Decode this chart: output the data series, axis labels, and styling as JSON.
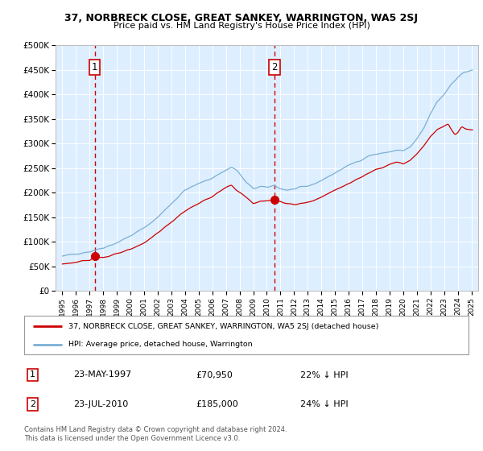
{
  "title": "37, NORBRECK CLOSE, GREAT SANKEY, WARRINGTON, WA5 2SJ",
  "subtitle": "Price paid vs. HM Land Registry's House Price Index (HPI)",
  "ylim": [
    0,
    500000
  ],
  "yticks": [
    0,
    50000,
    100000,
    150000,
    200000,
    250000,
    300000,
    350000,
    400000,
    450000,
    500000
  ],
  "xlim_start": 1994.5,
  "xlim_end": 2025.5,
  "bg_color": "#ddeeff",
  "red_line_color": "#cc0000",
  "blue_line_color": "#7ab0d4",
  "sale1_year": 1997.38,
  "sale1_price": 70950,
  "sale2_year": 2010.55,
  "sale2_price": 185000,
  "legend_red_label": "37, NORBRECK CLOSE, GREAT SANKEY, WARRINGTON, WA5 2SJ (detached house)",
  "legend_blue_label": "HPI: Average price, detached house, Warrington",
  "table_row1": [
    "1",
    "23-MAY-1997",
    "£70,950",
    "22% ↓ HPI"
  ],
  "table_row2": [
    "2",
    "23-JUL-2010",
    "£185,000",
    "24% ↓ HPI"
  ],
  "footer": "Contains HM Land Registry data © Crown copyright and database right 2024.\nThis data is licensed under the Open Government Licence v3.0."
}
